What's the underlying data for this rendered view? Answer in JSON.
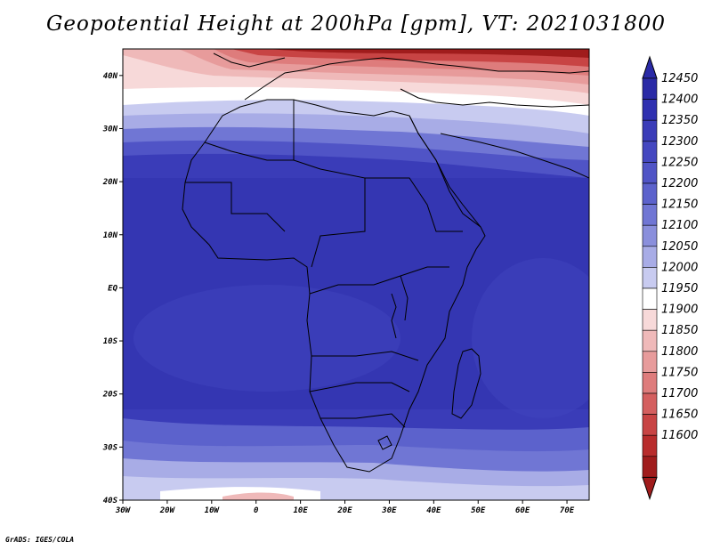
{
  "title": "Geopotential Height at 200hPa [gpm], VT: 2021031800",
  "footer": "GrADS: IGES/COLA",
  "map": {
    "lon_range": [
      -30,
      75
    ],
    "lat_range": [
      -40,
      45
    ],
    "lon_ticks": [
      {
        "lon": -30,
        "label": "30W"
      },
      {
        "lon": -20,
        "label": "20W"
      },
      {
        "lon": -10,
        "label": "10W"
      },
      {
        "lon": 0,
        "label": "0"
      },
      {
        "lon": 10,
        "label": "10E"
      },
      {
        "lon": 20,
        "label": "20E"
      },
      {
        "lon": 30,
        "label": "30E"
      },
      {
        "lon": 40,
        "label": "40E"
      },
      {
        "lon": 50,
        "label": "50E"
      },
      {
        "lon": 60,
        "label": "60E"
      },
      {
        "lon": 70,
        "label": "70E"
      }
    ],
    "lat_ticks": [
      {
        "lat": 40,
        "label": "40N"
      },
      {
        "lat": 30,
        "label": "30N"
      },
      {
        "lat": 20,
        "label": "20N"
      },
      {
        "lat": 10,
        "label": "10N"
      },
      {
        "lat": 0,
        "label": "EQ"
      },
      {
        "lat": -10,
        "label": "10S"
      },
      {
        "lat": -20,
        "label": "20S"
      },
      {
        "lat": -30,
        "label": "30S"
      },
      {
        "lat": -40,
        "label": "40S"
      }
    ]
  },
  "colorbar": {
    "levels": [
      "12450",
      "12400",
      "12350",
      "12300",
      "12250",
      "12200",
      "12150",
      "12100",
      "12050",
      "12000",
      "11950",
      "11900",
      "11850",
      "11800",
      "11750",
      "11700",
      "11650",
      "11600"
    ],
    "colors": [
      "#2a2aa6",
      "#2f30b0",
      "#3a3cb8",
      "#4447c0",
      "#5054c6",
      "#5c62cc",
      "#7076d4",
      "#8a8fdc",
      "#a8ace6",
      "#c8cbf0",
      "#ffffff",
      "#f7d9d9",
      "#efb9b9",
      "#e79b9b",
      "#de7c7c",
      "#d45f5f",
      "#c84444",
      "#b82c2c",
      "#a01c1c"
    ]
  }
}
